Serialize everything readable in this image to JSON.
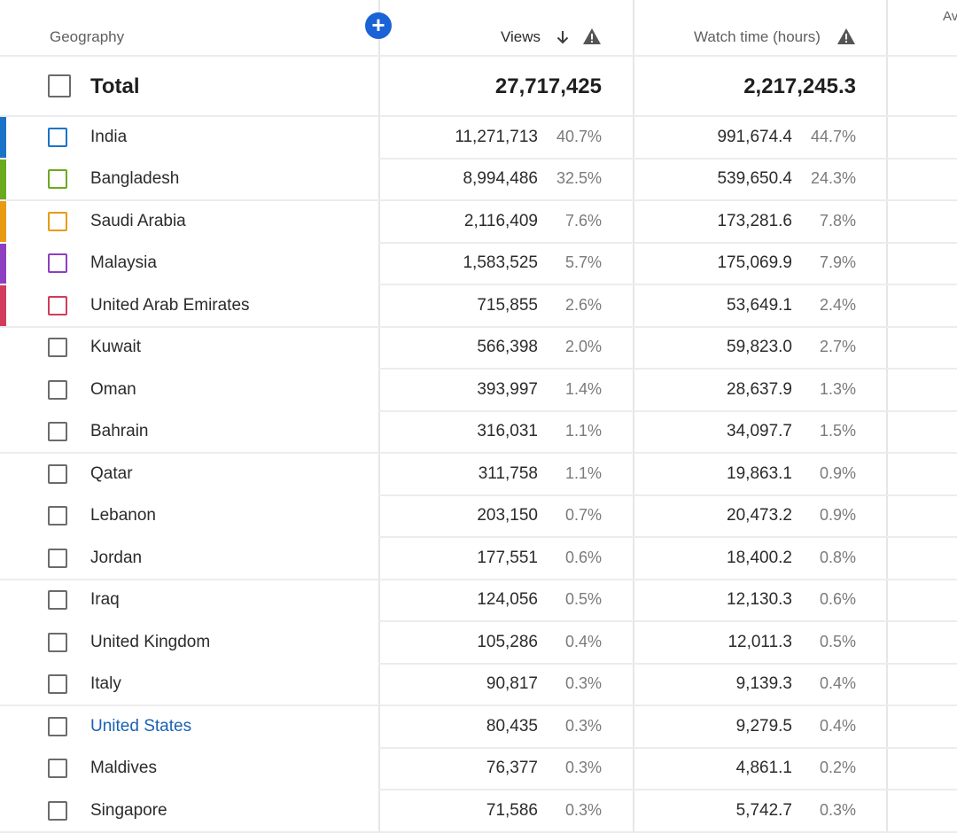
{
  "header": {
    "geography": "Geography",
    "views": "Views",
    "watch_time": "Watch time (hours)",
    "next_col_partial": "Av"
  },
  "total": {
    "label": "Total",
    "views": "27,717,425",
    "watch_time": "2,217,245.3"
  },
  "colors": {
    "india": "#1a73c8",
    "bangladesh": "#6aaa1e",
    "saudi_arabia": "#e89a10",
    "malaysia": "#8e3ec1",
    "united_arab_emirates": "#d23b5c",
    "link": "#1a62b3",
    "add_button": "#1a62d6"
  },
  "rows": [
    {
      "name": "India",
      "views": "11,271,713",
      "views_pct": "40.7%",
      "watch": "991,674.4",
      "watch_pct": "44.7%",
      "color": "#1a73c8"
    },
    {
      "name": "Bangladesh",
      "views": "8,994,486",
      "views_pct": "32.5%",
      "watch": "539,650.4",
      "watch_pct": "24.3%",
      "color": "#6aaa1e"
    },
    {
      "name": "Saudi Arabia",
      "views": "2,116,409",
      "views_pct": "7.6%",
      "watch": "173,281.6",
      "watch_pct": "7.8%",
      "color": "#e89a10"
    },
    {
      "name": "Malaysia",
      "views": "1,583,525",
      "views_pct": "5.7%",
      "watch": "175,069.9",
      "watch_pct": "7.9%",
      "color": "#8e3ec1"
    },
    {
      "name": "United Arab Emirates",
      "views": "715,855",
      "views_pct": "2.6%",
      "watch": "53,649.1",
      "watch_pct": "2.4%",
      "color": "#d23b5c"
    },
    {
      "name": "Kuwait",
      "views": "566,398",
      "views_pct": "2.0%",
      "watch": "59,823.0",
      "watch_pct": "2.7%"
    },
    {
      "name": "Oman",
      "views": "393,997",
      "views_pct": "1.4%",
      "watch": "28,637.9",
      "watch_pct": "1.3%"
    },
    {
      "name": "Bahrain",
      "views": "316,031",
      "views_pct": "1.1%",
      "watch": "34,097.7",
      "watch_pct": "1.5%"
    },
    {
      "name": "Qatar",
      "views": "311,758",
      "views_pct": "1.1%",
      "watch": "19,863.1",
      "watch_pct": "0.9%"
    },
    {
      "name": "Lebanon",
      "views": "203,150",
      "views_pct": "0.7%",
      "watch": "20,473.2",
      "watch_pct": "0.9%"
    },
    {
      "name": "Jordan",
      "views": "177,551",
      "views_pct": "0.6%",
      "watch": "18,400.2",
      "watch_pct": "0.8%"
    },
    {
      "name": "Iraq",
      "views": "124,056",
      "views_pct": "0.5%",
      "watch": "12,130.3",
      "watch_pct": "0.6%"
    },
    {
      "name": "United Kingdom",
      "views": "105,286",
      "views_pct": "0.4%",
      "watch": "12,011.3",
      "watch_pct": "0.5%"
    },
    {
      "name": "Italy",
      "views": "90,817",
      "views_pct": "0.3%",
      "watch": "9,139.3",
      "watch_pct": "0.4%"
    },
    {
      "name": "United States",
      "views": "80,435",
      "views_pct": "0.3%",
      "watch": "9,279.5",
      "watch_pct": "0.4%",
      "link": true
    },
    {
      "name": "Maldives",
      "views": "76,377",
      "views_pct": "0.3%",
      "watch": "4,861.1",
      "watch_pct": "0.2%"
    },
    {
      "name": "Singapore",
      "views": "71,586",
      "views_pct": "0.3%",
      "watch": "5,742.7",
      "watch_pct": "0.3%"
    }
  ]
}
